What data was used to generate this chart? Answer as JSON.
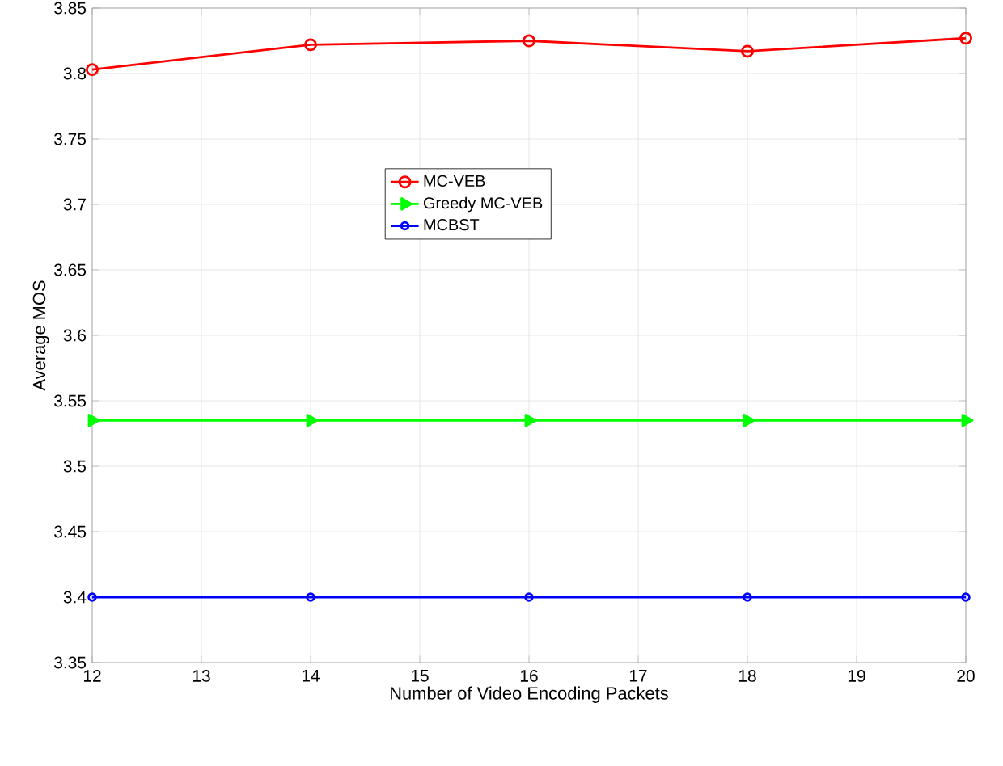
{
  "chart_data": {
    "type": "line",
    "xlabel": "Number of Video Encoding Packets",
    "ylabel": "Average MOS",
    "x": [
      12,
      14,
      16,
      18,
      20
    ],
    "series": [
      {
        "name": "MC-VEB",
        "color": "#ff0000",
        "marker": "circle",
        "values": [
          3.803,
          3.822,
          3.825,
          3.817,
          3.827
        ]
      },
      {
        "name": "Greedy MC-VEB",
        "color": "#00ff00",
        "marker": "triangle",
        "values": [
          3.535,
          3.535,
          3.535,
          3.535,
          3.535
        ]
      },
      {
        "name": "MCBST",
        "color": "#0000ff",
        "marker": "circle",
        "values": [
          3.4,
          3.4,
          3.4,
          3.4,
          3.4
        ]
      }
    ],
    "xlim": [
      12,
      20
    ],
    "xticks": [
      12,
      13,
      14,
      15,
      16,
      17,
      18,
      19,
      20
    ],
    "ylim": [
      3.35,
      3.85
    ],
    "yticks": [
      3.35,
      3.4,
      3.45,
      3.5,
      3.55,
      3.6,
      3.65,
      3.7,
      3.75,
      3.8,
      3.85
    ],
    "grid": true,
    "legend": "center",
    "line_style": "solid"
  }
}
